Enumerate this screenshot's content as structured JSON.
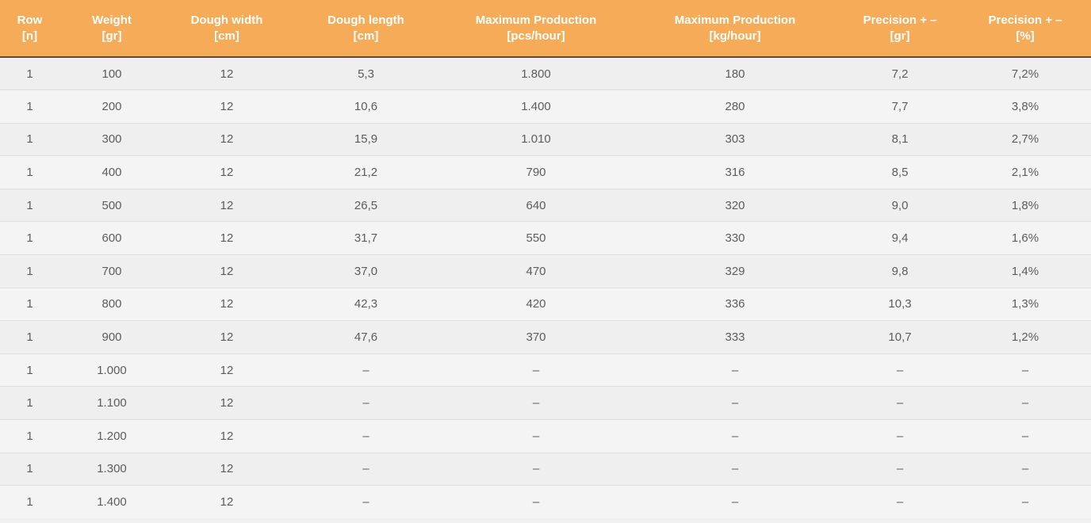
{
  "table": {
    "headers": [
      {
        "line1": "Row",
        "line2": "[n]"
      },
      {
        "line1": "Weight",
        "line2": "[gr]"
      },
      {
        "line1": "Dough width",
        "line2": "[cm]"
      },
      {
        "line1": "Dough length",
        "line2": "[cm]"
      },
      {
        "line1": "Maximum Production",
        "line2": "[pcs/hour]"
      },
      {
        "line1": "Maximum Production",
        "line2": "[kg/hour]"
      },
      {
        "line1": "Precision + –",
        "line2": "[gr]"
      },
      {
        "line1": "Precision + –",
        "line2": "[%]"
      }
    ],
    "rows": [
      [
        "1",
        "100",
        "12",
        "5,3",
        "1.800",
        "180",
        "7,2",
        "7,2%"
      ],
      [
        "1",
        "200",
        "12",
        "10,6",
        "1.400",
        "280",
        "7,7",
        "3,8%"
      ],
      [
        "1",
        "300",
        "12",
        "15,9",
        "1.010",
        "303",
        "8,1",
        "2,7%"
      ],
      [
        "1",
        "400",
        "12",
        "21,2",
        "790",
        "316",
        "8,5",
        "2,1%"
      ],
      [
        "1",
        "500",
        "12",
        "26,5",
        "640",
        "320",
        "9,0",
        "1,8%"
      ],
      [
        "1",
        "600",
        "12",
        "31,7",
        "550",
        "330",
        "9,4",
        "1,6%"
      ],
      [
        "1",
        "700",
        "12",
        "37,0",
        "470",
        "329",
        "9,8",
        "1,4%"
      ],
      [
        "1",
        "800",
        "12",
        "42,3",
        "420",
        "336",
        "10,3",
        "1,3%"
      ],
      [
        "1",
        "900",
        "12",
        "47,6",
        "370",
        "333",
        "10,7",
        "1,2%"
      ],
      [
        "1",
        "1.000",
        "12",
        "–",
        "–",
        "–",
        "–",
        "–"
      ],
      [
        "1",
        "1.100",
        "12",
        "–",
        "–",
        "–",
        "–",
        "–"
      ],
      [
        "1",
        "1.200",
        "12",
        "–",
        "–",
        "–",
        "–",
        "–"
      ],
      [
        "1",
        "1.300",
        "12",
        "–",
        "–",
        "–",
        "–",
        "–"
      ],
      [
        "1",
        "1.400",
        "12",
        "–",
        "–",
        "–",
        "–",
        "–"
      ]
    ]
  },
  "colors": {
    "header_bg": "#f5ab58",
    "header_text": "#ffffff",
    "row_bg": "#efefef",
    "row_alt_bg": "#f4f4f4",
    "cell_text": "#5c5c5c"
  }
}
